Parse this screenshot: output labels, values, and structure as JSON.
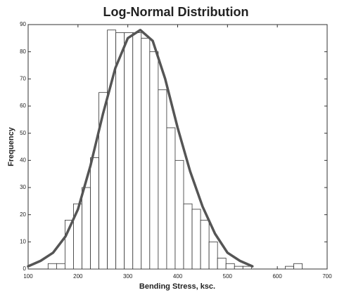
{
  "chart_data": {
    "type": "histogram",
    "title": "Log-Normal Distribution",
    "x_label": "Bending Stress, ksc.",
    "y_label": "Frequency",
    "bins": [
      140,
      157,
      174,
      191,
      208,
      225,
      242,
      259,
      276,
      293,
      310,
      327,
      344,
      361,
      378,
      395,
      412,
      429,
      446,
      463,
      480,
      497,
      514,
      531,
      548,
      565,
      582,
      599,
      616,
      633,
      650
    ],
    "counts": [
      2,
      2,
      18,
      24,
      30,
      41,
      65,
      88,
      87,
      87,
      87,
      85,
      80,
      66,
      52,
      40,
      24,
      22,
      18,
      10,
      4,
      2,
      1,
      1,
      0,
      0,
      0,
      0,
      1,
      2
    ],
    "color": "#ffffff",
    "edge_color": "#333333",
    "curve": {
      "x": [
        100,
        125,
        150,
        175,
        200,
        225,
        250,
        275,
        300,
        325,
        350,
        375,
        400,
        425,
        450,
        475,
        500,
        525,
        550
      ],
      "values": [
        1,
        3,
        6,
        12,
        22,
        38,
        57,
        74,
        85,
        88,
        84,
        70,
        52,
        36,
        23,
        13,
        6,
        3,
        1
      ],
      "color": "#555555"
    },
    "xlim": [
      100,
      700
    ],
    "xticks": [
      100,
      200,
      300,
      400,
      500,
      600,
      700
    ],
    "ylim": [
      0,
      90
    ],
    "yticks": [
      0,
      10,
      20,
      30,
      40,
      50,
      60,
      70,
      80,
      90
    ]
  }
}
